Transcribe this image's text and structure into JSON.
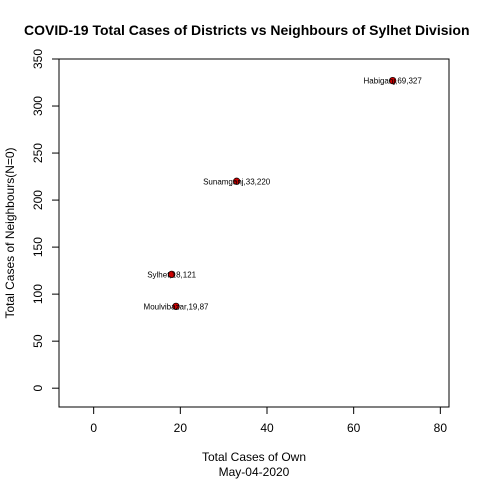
{
  "chart_data": {
    "type": "scatter",
    "title": "COVID-19 Total Cases of Districts vs Neighbours of Sylhet Division",
    "xlabel": "Total Cases of Own",
    "xlabel_sub": "May-04-2020",
    "ylabel": "Total Cases of Neighbours(N=0)",
    "xlim": [
      -8,
      82
    ],
    "ylim": [
      -20,
      350
    ],
    "xticks": [
      0,
      20,
      40,
      60,
      80
    ],
    "yticks": [
      0,
      50,
      100,
      150,
      200,
      250,
      300,
      350
    ],
    "grid": false,
    "legend": "none",
    "point_color": "#cc0000",
    "points": [
      {
        "label": "Habiganj,69,327",
        "x": 69,
        "y": 327
      },
      {
        "label": "Sunamganj,33,220",
        "x": 33,
        "y": 220
      },
      {
        "label": "Sylhet,18,121",
        "x": 18,
        "y": 121
      },
      {
        "label": "Moulvibazar,19,87",
        "x": 19,
        "y": 87
      }
    ]
  }
}
